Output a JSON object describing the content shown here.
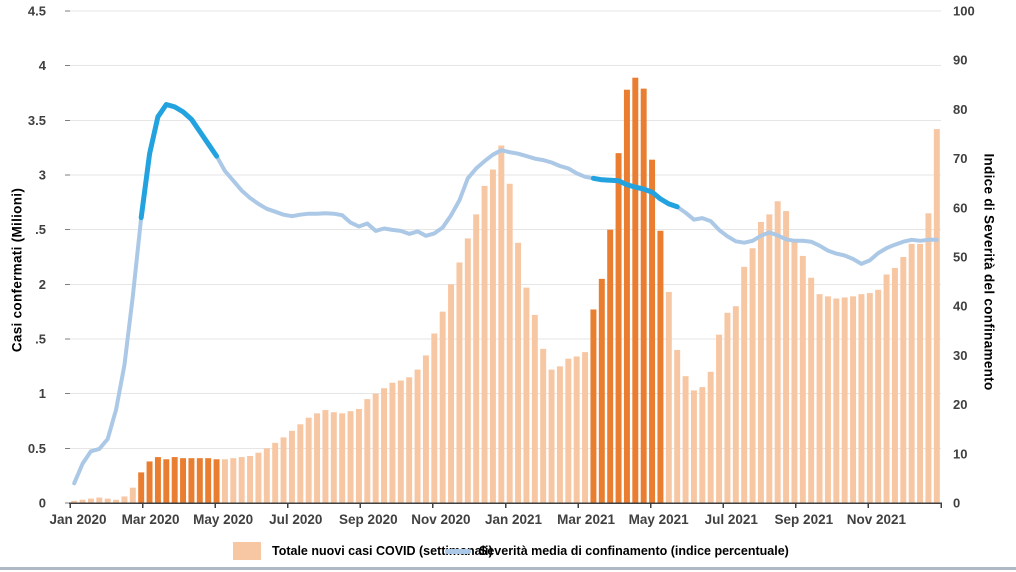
{
  "left_axis": {
    "title": "Casi confermati (Milioni)",
    "tick_labels_bottom_to_top": [
      "0",
      "0.5",
      "1",
      ".5",
      "2",
      ".5",
      "3",
      "3.5",
      "4",
      "4.5"
    ]
  },
  "right_axis": {
    "title": "Indice di Severità del confinamento",
    "tick_labels_bottom_to_top": [
      "0",
      "10",
      "20",
      "30",
      "40",
      "50",
      "60",
      "70",
      "80",
      "90",
      "100"
    ]
  },
  "x_axis": {
    "tick_labels": [
      "Jan 2020",
      "Mar 2020",
      "May 2020",
      "Jul 2020",
      "Sep 2020",
      "Nov 2020",
      "Jan 2021",
      "Mar 2021",
      "May 2021",
      "Jul 2021",
      "Sep 2021",
      "Nov 2021"
    ]
  },
  "legend": {
    "bars_label": "Totale nuovi casi COVID (settimanali)",
    "line_label": "Severità media di confinamento (indice percentuale)"
  },
  "colors": {
    "bar_light": "#F7C7A3",
    "bar_dark": "#E97E31",
    "line_light": "#ABC8E6",
    "line_dark": "#22A3DF",
    "gridline": "#E6E6E6",
    "axis": "#404040",
    "tick_stub": "#7F7F7F",
    "tick_text": "#404040",
    "bottom_divider": "#AEB9C5"
  },
  "chart_data": {
    "type": "combo_bar_line",
    "x_unit": "week",
    "x_range": [
      "Jan 2020",
      "Dec 2021"
    ],
    "x_tick_labels": [
      "Jan 2020",
      "Mar 2020",
      "May 2020",
      "Jul 2020",
      "Sep 2020",
      "Nov 2020",
      "Jan 2021",
      "Mar 2021",
      "May 2021",
      "Jul 2021",
      "Sep 2021",
      "Nov 2021"
    ],
    "ylabel_left": "Casi confermati (Milioni)",
    "ylabel_right": "Indice di Severità del confinamento",
    "ylim_left": [
      0,
      4.5
    ],
    "ylim_right": [
      0,
      100
    ],
    "grid": true,
    "legend_position": "bottom",
    "bar_series": {
      "name": "Totale nuovi casi COVID (settimanali)",
      "axis": "left",
      "unit": "millions of confirmed cases per week",
      "values": [
        0.02,
        0.03,
        0.04,
        0.05,
        0.04,
        0.03,
        0.06,
        0.14,
        0.28,
        0.38,
        0.42,
        0.4,
        0.42,
        0.41,
        0.41,
        0.41,
        0.41,
        0.4,
        0.4,
        0.41,
        0.42,
        0.43,
        0.46,
        0.5,
        0.55,
        0.6,
        0.66,
        0.72,
        0.78,
        0.82,
        0.85,
        0.83,
        0.82,
        0.84,
        0.86,
        0.95,
        1.0,
        1.05,
        1.1,
        1.12,
        1.15,
        1.22,
        1.35,
        1.55,
        1.75,
        2.0,
        2.2,
        2.42,
        2.64,
        2.9,
        3.05,
        3.27,
        2.92,
        2.38,
        1.97,
        1.72,
        1.41,
        1.22,
        1.25,
        1.32,
        1.34,
        1.38,
        1.77,
        2.05,
        2.5,
        3.2,
        3.78,
        3.89,
        3.79,
        3.14,
        2.49,
        1.93,
        1.4,
        1.16,
        1.03,
        1.06,
        1.2,
        1.54,
        1.74,
        1.8,
        2.16,
        2.33,
        2.57,
        2.64,
        2.76,
        2.67,
        2.4,
        2.26,
        2.06,
        1.91,
        1.89,
        1.87,
        1.88,
        1.89,
        1.91,
        1.92,
        1.95,
        2.09,
        2.15,
        2.25,
        2.37,
        2.37,
        2.65,
        3.42
      ],
      "highlight_ranges": [
        [
          8,
          17
        ],
        [
          62,
          70
        ]
      ]
    },
    "line_series": {
      "name": "Severità media di confinamento (indice percentuale)",
      "axis": "right",
      "unit": "stringency index 0-100",
      "values": [
        4,
        8,
        10.5,
        11,
        13,
        19,
        28,
        42,
        58,
        71,
        78.5,
        81,
        80.5,
        79.5,
        78,
        75.5,
        73,
        70.5,
        67.5,
        65.5,
        63.5,
        62,
        60.8,
        59.8,
        59.2,
        58.6,
        58.3,
        58.6,
        58.8,
        58.8,
        58.9,
        58.8,
        58.5,
        57.0,
        56.2,
        56.8,
        55.3,
        55.8,
        55.5,
        55.3,
        54.7,
        55.2,
        54.3,
        54.8,
        56.0,
        58.5,
        61.5,
        66,
        68,
        69.5,
        70.8,
        71.7,
        71.3,
        71,
        70.5,
        70,
        69.7,
        69.2,
        68.5,
        68,
        67,
        66.3,
        66,
        65.7,
        65.6,
        65.5,
        64.7,
        64.2,
        63.8,
        63.2,
        61.8,
        60.8,
        60.2,
        59,
        57.6,
        57.9,
        57.3,
        55.5,
        54.2,
        53.2,
        52.9,
        53.3,
        54.3,
        55,
        54.4,
        53.6,
        53.3,
        53.3,
        53.1,
        52.3,
        51.3,
        50.7,
        50.3,
        49.6,
        48.6,
        49.3,
        50.8,
        51.8,
        52.5,
        53.1,
        53.5,
        53.3,
        53.5,
        53.5
      ],
      "highlight_ranges": [
        [
          8,
          17
        ],
        [
          62,
          72
        ]
      ]
    }
  }
}
